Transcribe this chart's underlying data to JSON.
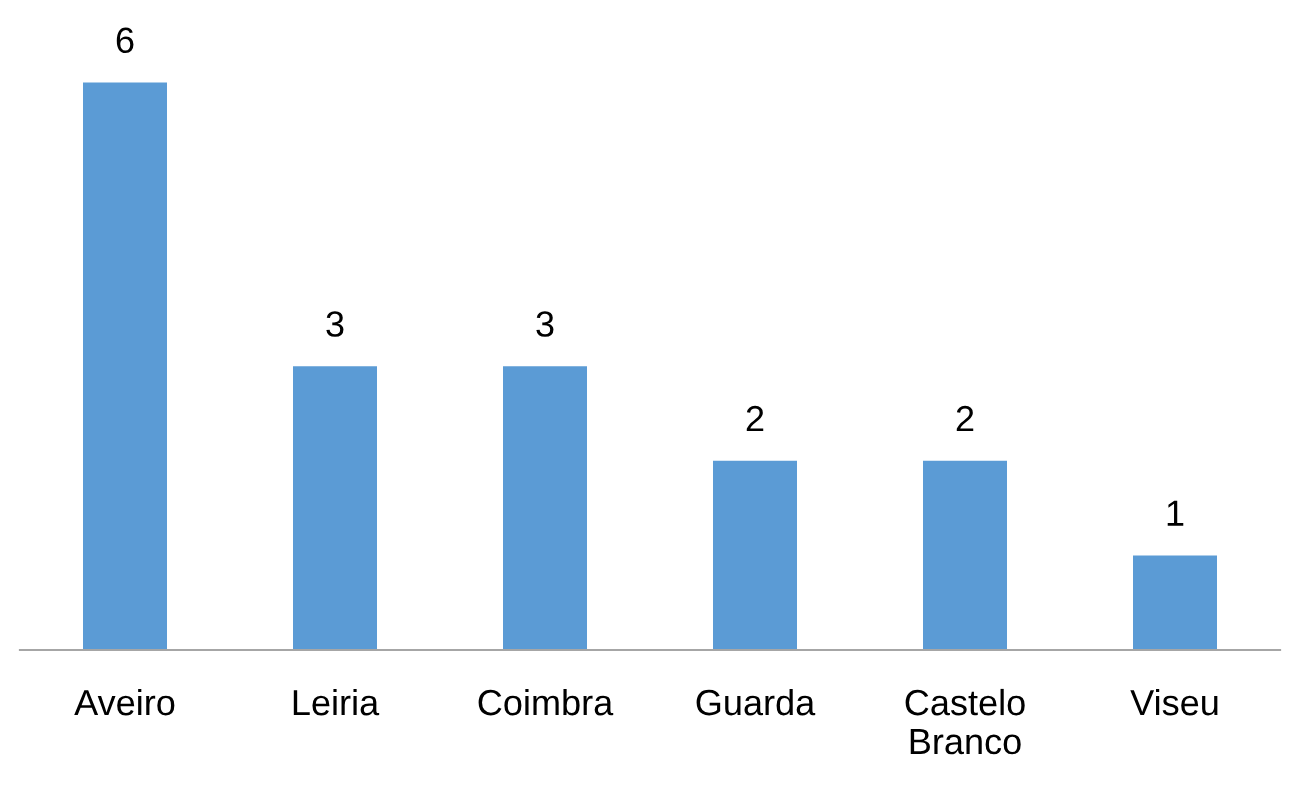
{
  "chart_data": {
    "type": "bar",
    "categories": [
      "Aveiro",
      "Leiria",
      "Coimbra",
      "Guarda",
      "Castelo Branco",
      "Viseu"
    ],
    "values": [
      6,
      3,
      3,
      2,
      2,
      1
    ],
    "color": "#5b9bd5",
    "data_labels": true
  }
}
